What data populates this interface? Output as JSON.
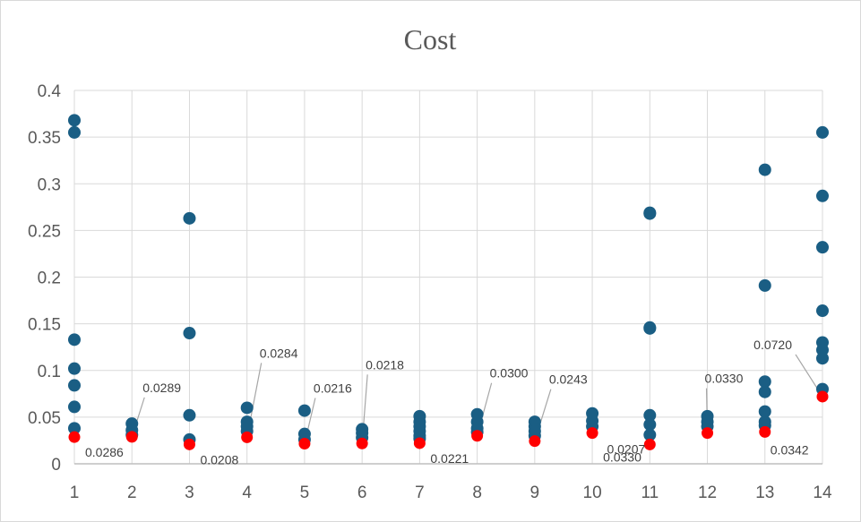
{
  "chart_data": {
    "type": "scatter",
    "title": "Cost",
    "xlabel": "",
    "ylabel": "",
    "xlim": [
      1,
      14
    ],
    "ylim": [
      0,
      0.4
    ],
    "x_ticks": [
      "1",
      "2",
      "3",
      "4",
      "5",
      "6",
      "7",
      "8",
      "9",
      "10",
      "11",
      "12",
      "13",
      "14"
    ],
    "y_ticks": [
      "0",
      "0.05",
      "0.1",
      "0.15",
      "0.2",
      "0.25",
      "0.3",
      "0.35",
      "0.4"
    ],
    "grid": true,
    "legend": "none",
    "colors": {
      "series": "#1a5e84",
      "best": "#ff0000",
      "grid": "#d9d9d9",
      "axis": "#bfbfbf",
      "leader": "#a6a6a6"
    },
    "series": [
      {
        "points": [
          [
            1,
            0.368
          ],
          [
            1,
            0.355
          ],
          [
            1,
            0.133
          ],
          [
            1,
            0.102
          ],
          [
            1,
            0.084
          ],
          [
            1,
            0.061
          ],
          [
            1,
            0.038
          ],
          [
            2,
            0.043
          ],
          [
            2,
            0.036
          ],
          [
            2,
            0.031
          ],
          [
            3,
            0.263
          ],
          [
            3,
            0.14
          ],
          [
            3,
            0.052
          ],
          [
            3,
            0.026
          ],
          [
            4,
            0.06
          ],
          [
            4,
            0.045
          ],
          [
            4,
            0.04
          ],
          [
            4,
            0.035
          ],
          [
            5,
            0.057
          ],
          [
            5,
            0.032
          ],
          [
            5,
            0.026
          ],
          [
            6,
            0.037
          ],
          [
            6,
            0.033
          ],
          [
            6,
            0.028
          ],
          [
            7,
            0.051
          ],
          [
            7,
            0.045
          ],
          [
            7,
            0.04
          ],
          [
            7,
            0.035
          ],
          [
            7,
            0.03
          ],
          [
            7,
            0.027
          ],
          [
            8,
            0.053
          ],
          [
            8,
            0.045
          ],
          [
            8,
            0.038
          ],
          [
            8,
            0.034
          ],
          [
            9,
            0.045
          ],
          [
            9,
            0.04
          ],
          [
            9,
            0.035
          ],
          [
            9,
            0.03
          ],
          [
            10,
            0.054
          ],
          [
            10,
            0.046
          ],
          [
            10,
            0.04
          ],
          [
            11,
            0.268
          ],
          [
            11,
            0.269
          ],
          [
            11,
            0.145
          ],
          [
            11,
            0.146
          ],
          [
            11,
            0.052
          ],
          [
            11,
            0.042
          ],
          [
            11,
            0.031
          ],
          [
            12,
            0.051
          ],
          [
            12,
            0.045
          ],
          [
            12,
            0.04
          ],
          [
            13,
            0.315
          ],
          [
            13,
            0.191
          ],
          [
            13,
            0.088
          ],
          [
            13,
            0.077
          ],
          [
            13,
            0.056
          ],
          [
            13,
            0.045
          ],
          [
            13,
            0.041
          ],
          [
            14,
            0.355
          ],
          [
            14,
            0.287
          ],
          [
            14,
            0.232
          ],
          [
            14,
            0.164
          ],
          [
            14,
            0.13
          ],
          [
            14,
            0.122
          ],
          [
            14,
            0.113
          ],
          [
            14,
            0.08
          ]
        ]
      },
      {
        "points": [
          [
            1,
            0.0286
          ],
          [
            2,
            0.0289
          ],
          [
            3,
            0.0208
          ],
          [
            4,
            0.0284
          ],
          [
            5,
            0.0216
          ],
          [
            6,
            0.0218
          ],
          [
            7,
            0.0221
          ],
          [
            8,
            0.03
          ],
          [
            9,
            0.0243
          ],
          [
            10,
            0.033
          ],
          [
            11,
            0.0207
          ],
          [
            12,
            0.033
          ],
          [
            13,
            0.0342
          ],
          [
            14,
            0.072
          ]
        ]
      }
    ],
    "annotations": [
      {
        "x": 1,
        "text": "0.0286"
      },
      {
        "x": 2,
        "text": "0.0289"
      },
      {
        "x": 3,
        "text": "0.0208"
      },
      {
        "x": 4,
        "text": "0.0284"
      },
      {
        "x": 5,
        "text": "0.0216"
      },
      {
        "x": 6,
        "text": "0.0218"
      },
      {
        "x": 7,
        "text": "0.0221"
      },
      {
        "x": 8,
        "text": "0.0300"
      },
      {
        "x": 9,
        "text": "0.0243"
      },
      {
        "x": 10,
        "text": "0.0330"
      },
      {
        "x": 11,
        "text": "0.0207"
      },
      {
        "x": 12,
        "text": "0.0330"
      },
      {
        "x": 13,
        "text": "0.0342"
      },
      {
        "x": 14,
        "text": "0.0720"
      }
    ]
  }
}
